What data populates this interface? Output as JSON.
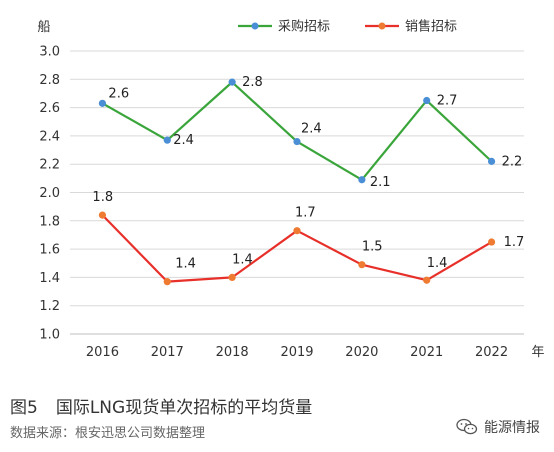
{
  "chart_data": {
    "type": "line",
    "ylabel": "船",
    "xlabel": "年",
    "categories": [
      "2016",
      "2017",
      "2018",
      "2019",
      "2020",
      "2021",
      "2022"
    ],
    "ylim": [
      1.0,
      3.0
    ],
    "yticks": [
      "1.0",
      "1.2",
      "1.4",
      "1.6",
      "1.8",
      "2.0",
      "2.2",
      "2.4",
      "2.6",
      "2.8",
      "3.0"
    ],
    "legend_position": "top",
    "grid": "horizontal",
    "series": [
      {
        "name": "采购招标",
        "color": "#3aa53a",
        "marker_color": "#4a8fd6",
        "values": [
          2.63,
          2.37,
          2.78,
          2.36,
          2.09,
          2.65,
          2.22
        ],
        "labels": [
          "2.6",
          "2.4",
          "2.8",
          "2.4",
          "2.1",
          "2.7",
          "2.2"
        ]
      },
      {
        "name": "销售招标",
        "color": "#e8302a",
        "marker_color": "#ef7b33",
        "values": [
          1.84,
          1.37,
          1.4,
          1.73,
          1.49,
          1.38,
          1.65
        ],
        "labels": [
          "1.8",
          "1.4",
          "1.4",
          "1.7",
          "1.5",
          "1.4",
          "1.7"
        ]
      }
    ]
  },
  "caption": {
    "figure": "图5",
    "title": "国际LNG现货单次招标的平均货量"
  },
  "source": "数据来源：根安迅思公司数据整理",
  "watermark": "能源情报"
}
